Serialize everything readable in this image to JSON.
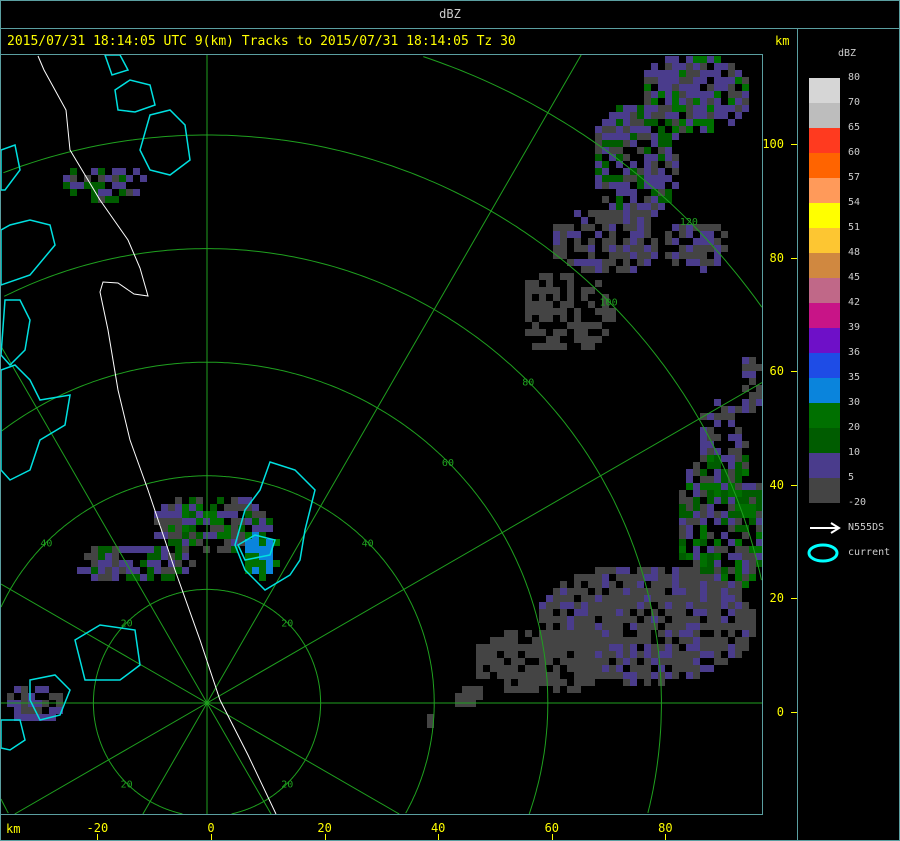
{
  "window_title": "dBZ",
  "header": {
    "title": "2015/07/31 18:14:05 UTC 9(km) Tracks to 2015/07/31 18:14:05 Tz 30",
    "y_unit": "km",
    "x_unit": "km"
  },
  "axes": {
    "x_ticks": [
      "-20",
      "0",
      "20",
      "40",
      "60",
      "80"
    ],
    "y_ticks": [
      "100",
      "80",
      "60",
      "40",
      "20",
      "0"
    ],
    "range_ring_labels": [
      "20",
      "40",
      "60",
      "80",
      "100",
      "120"
    ]
  },
  "legend": {
    "title": "dBZ",
    "bins": [
      {
        "label": "80",
        "color": "#d6d6d6"
      },
      {
        "label": "70",
        "color": "#bdbdbd"
      },
      {
        "label": "65",
        "color": "#ff3a1f"
      },
      {
        "label": "60",
        "color": "#ff6400"
      },
      {
        "label": "57",
        "color": "#ff9a5a"
      },
      {
        "label": "54",
        "color": "#ffff00"
      },
      {
        "label": "51",
        "color": "#fdc632"
      },
      {
        "label": "48",
        "color": "#d08840"
      },
      {
        "label": "45",
        "color": "#c06888"
      },
      {
        "label": "42",
        "color": "#c81487"
      },
      {
        "label": "39",
        "color": "#6e10c8"
      },
      {
        "label": "36",
        "color": "#1e4ce6"
      },
      {
        "label": "35",
        "color": "#0a84dc"
      },
      {
        "label": "30",
        "color": "#007000"
      },
      {
        "label": "20",
        "color": "#005c00"
      },
      {
        "label": "10",
        "color": "#4a3c8c"
      },
      {
        "label": "5",
        "color": "#444444"
      }
    ],
    "bottom_label": "-20",
    "track_label": "N555DS",
    "contour_label": "current"
  },
  "colors": {
    "frame": "#5a9ea0",
    "grid": "#1fa01f",
    "axis_text": "#ffff00",
    "contour": "#00e0e0",
    "track": "#ffffff"
  }
}
